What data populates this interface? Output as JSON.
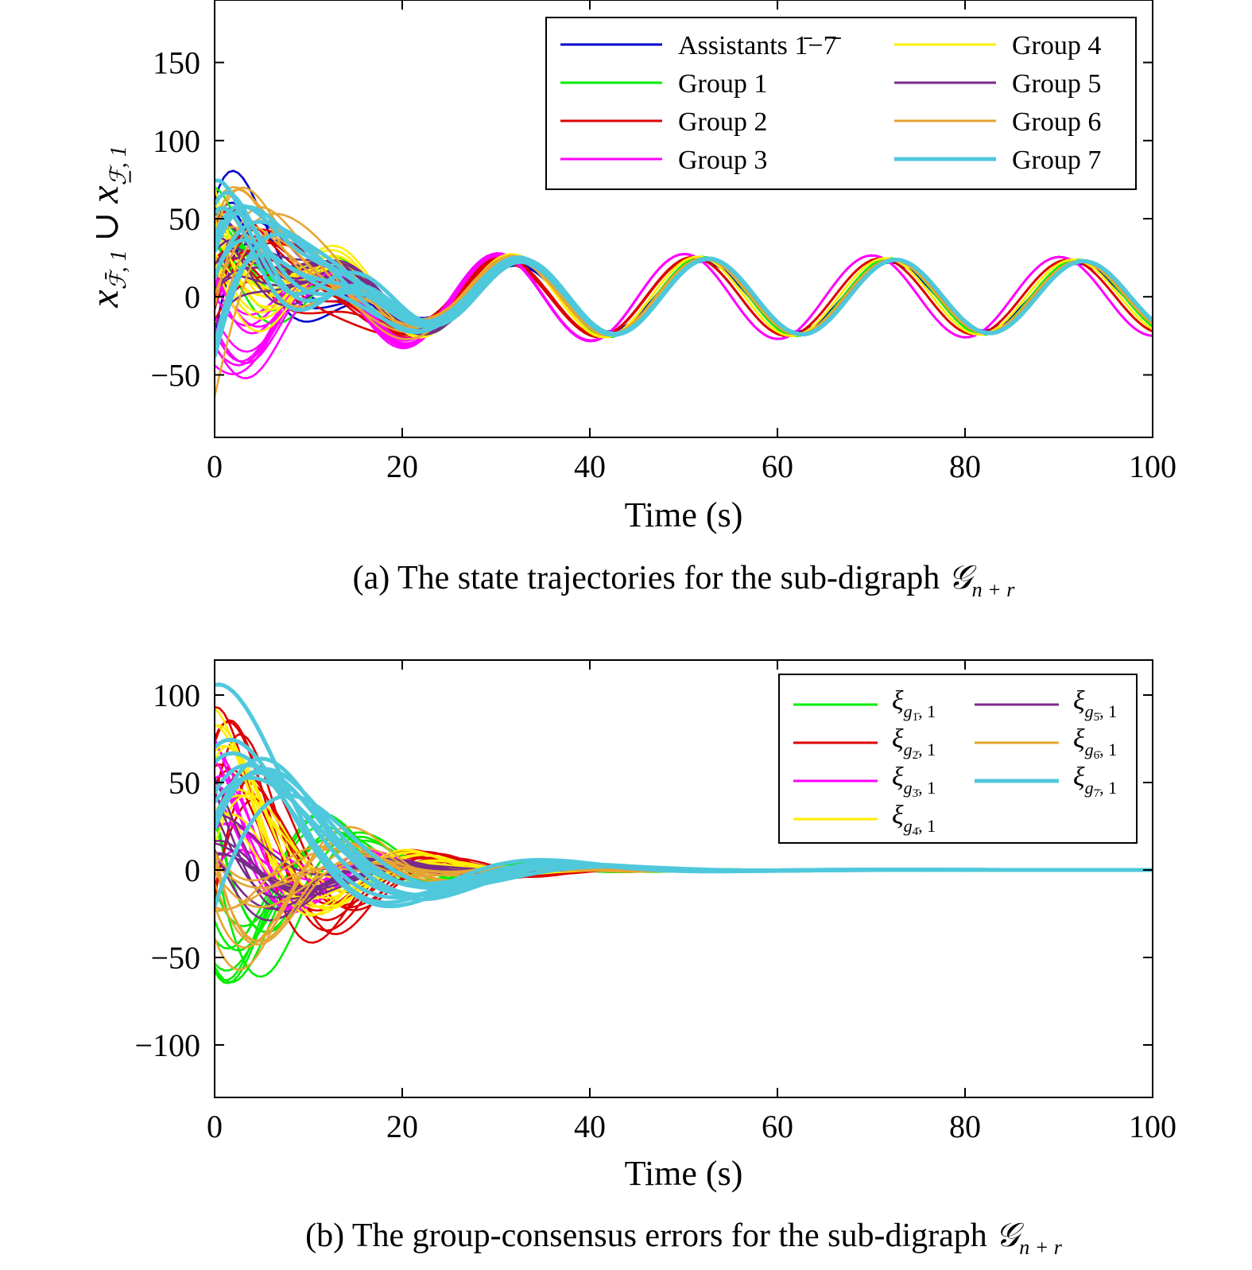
{
  "figure": {
    "background": "#ffffff"
  },
  "chart_data": [
    {
      "type": "line",
      "panel": "a",
      "caption": "(a) The state trajectories for the sub-digraph 𝒢n + r",
      "caption_main": "(a) The state trajectories for the sub-digraph ",
      "caption_sym": "𝒢",
      "caption_sub": "n + r",
      "xlabel": "Time (s)",
      "ylabel": "xℱ̄,1 ∪ xℱ̲,1",
      "ylabel_parts": [
        "x",
        "ℱ̄, 1",
        " ∪ ",
        "x",
        "ℱ̲, 1"
      ],
      "xlim": [
        0,
        100
      ],
      "ylim": [
        -90,
        190
      ],
      "xticks": [
        0,
        20,
        40,
        60,
        80,
        100
      ],
      "yticks": [
        -50,
        0,
        50,
        100,
        150
      ],
      "xtick_labels": [
        "0",
        "20",
        "40",
        "60",
        "80",
        "100"
      ],
      "ytick_labels": [
        "−50",
        "0",
        "50",
        "100",
        "150"
      ],
      "grid": false,
      "legend_position": "top-right",
      "legend_columns": 2,
      "series": [
        {
          "name": "Assistants 1̄−7̄",
          "color": "#0000cc",
          "count": 7,
          "amp": 80,
          "ofs": 0,
          "decay": 9,
          "ph": 0.2,
          "cphase": 0.0,
          "camp": 0,
          "spread": 30
        },
        {
          "name": "Group 1",
          "color": "#00ee00",
          "count": 10,
          "amp": 35,
          "ofs": 10,
          "decay": 9,
          "ph": 1.1,
          "cphase": 0.0,
          "camp": 28,
          "spread": 18
        },
        {
          "name": "Group 2",
          "color": "#dd0000",
          "count": 10,
          "amp": 70,
          "ofs": -5,
          "decay": 10,
          "ph": 0.4,
          "cphase": 0.3,
          "camp": 28,
          "spread": 22
        },
        {
          "name": "Group 3",
          "color": "#ff00ff",
          "count": 10,
          "amp": 25,
          "ofs": -20,
          "decay": 9,
          "ph": 2.4,
          "cphase": 0.6,
          "camp": 30,
          "spread": 12
        },
        {
          "name": "Group 4",
          "color": "#ffee00",
          "count": 10,
          "amp": 30,
          "ofs": 10,
          "decay": 9,
          "ph": 1.8,
          "cphase": 0.15,
          "camp": 28,
          "spread": 14
        },
        {
          "name": "Group 5",
          "color": "#7a2a8a",
          "count": 10,
          "amp": 45,
          "ofs": 5,
          "decay": 9,
          "ph": 0.6,
          "cphase": -0.15,
          "camp": 27,
          "spread": 16
        },
        {
          "name": "Group 6",
          "color": "#e6a532",
          "count": 10,
          "amp": 80,
          "ofs": 15,
          "decay": 10,
          "ph": 0.1,
          "cphase": -0.05,
          "camp": 27,
          "spread": 25
        },
        {
          "name": "Group 7",
          "color": "#50c8dc",
          "count": 10,
          "amp": 70,
          "ofs": 10,
          "decay": 10,
          "ph": 0.2,
          "cphase": -0.2,
          "camp": 27,
          "spread": 14
        }
      ]
    },
    {
      "type": "line",
      "panel": "b",
      "caption": "(b) The group-consensus errors for the sub-digraph 𝒢n + r",
      "caption_main": "(b) The group-consensus errors for the sub-digraph ",
      "caption_sym": "𝒢",
      "caption_sub": "n + r",
      "xlabel": "Time (s)",
      "ylabel": "",
      "xlim": [
        0,
        100
      ],
      "ylim": [
        -130,
        120
      ],
      "xticks": [
        0,
        20,
        40,
        60,
        80,
        100
      ],
      "yticks": [
        -100,
        -50,
        0,
        50,
        100
      ],
      "xtick_labels": [
        "0",
        "20",
        "40",
        "60",
        "80",
        "100"
      ],
      "ytick_labels": [
        "−100",
        "−50",
        "0",
        "50",
        "100"
      ],
      "grid": false,
      "legend_position": "top-right",
      "legend_columns": 2,
      "series": [
        {
          "name": "ξg1̄, 1",
          "sub": "1̄",
          "color": "#00ee00",
          "count": 10,
          "amp": -75,
          "decay": 10,
          "freq": 0.3,
          "ph": 0.4,
          "spread": 20
        },
        {
          "name": "ξg2̄, 1",
          "sub": "2̄",
          "color": "#dd0000",
          "count": 10,
          "amp": 100,
          "decay": 9,
          "freq": 0.3,
          "ph": 0.6,
          "spread": 40
        },
        {
          "name": "ξg3̄, 1",
          "sub": "3̄",
          "color": "#ff00ff",
          "count": 10,
          "amp": 40,
          "decay": 8,
          "freq": 0.35,
          "ph": 1.2,
          "spread": 25
        },
        {
          "name": "ξg4̄, 1",
          "sub": "4̄",
          "color": "#ffee00",
          "count": 10,
          "amp": 60,
          "decay": 9,
          "freq": 0.3,
          "ph": 0.9,
          "spread": 25
        },
        {
          "name": "ξg5̄, 1",
          "sub": "5̄",
          "color": "#7a2a8a",
          "count": 10,
          "amp": 45,
          "decay": 8,
          "freq": 0.3,
          "ph": 1.8,
          "spread": 25
        },
        {
          "name": "ξg6̄, 1",
          "sub": "6̄",
          "color": "#e6a532",
          "count": 10,
          "amp": -45,
          "decay": 10,
          "freq": 0.3,
          "ph": 0.5,
          "spread": 35
        },
        {
          "name": "ξg7̄, 1",
          "sub": "7̄",
          "color": "#50c8dc",
          "count": 10,
          "amp": 85,
          "decay": 11,
          "freq": 0.18,
          "ph": 0.3,
          "spread": 22
        }
      ]
    }
  ]
}
